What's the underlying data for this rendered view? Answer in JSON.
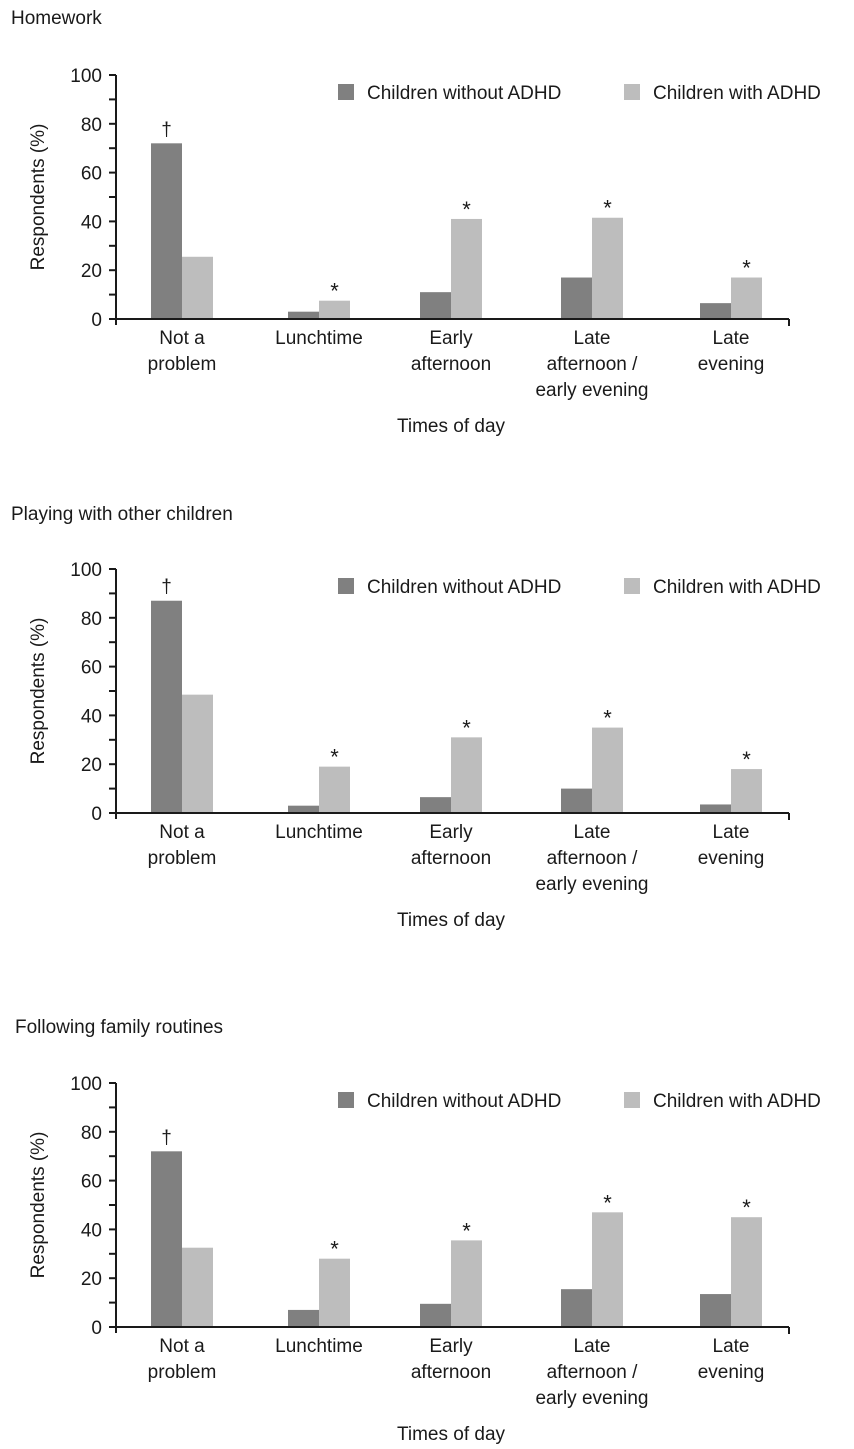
{
  "chart_data": [
    {
      "type": "bar",
      "title": "Homework",
      "categories": [
        [
          "Not a",
          "problem"
        ],
        [
          "Lunchtime"
        ],
        [
          "Early",
          "afternoon"
        ],
        [
          "Late",
          "afternoon /",
          "early evening"
        ],
        [
          "Late",
          "evening"
        ]
      ],
      "series": [
        {
          "name": "Children without ADHD",
          "color": "#808080",
          "values": [
            72,
            3,
            11,
            17,
            6.5
          ]
        },
        {
          "name": "Children with ADHD",
          "color": "#bdbdbd",
          "values": [
            25.5,
            7.5,
            41,
            41.5,
            17
          ]
        }
      ],
      "annotations": [
        {
          "category": 0,
          "series": 0,
          "text": "†"
        },
        {
          "category": 1,
          "series": 1,
          "text": "*"
        },
        {
          "category": 2,
          "series": 1,
          "text": "*"
        },
        {
          "category": 3,
          "series": 1,
          "text": "*"
        },
        {
          "category": 4,
          "series": 1,
          "text": "*"
        }
      ],
      "xlabel": "Times of day",
      "ylabel": "Respondents (%)",
      "ylim": [
        0,
        100
      ],
      "yticks": [
        0,
        20,
        40,
        60,
        80,
        100
      ],
      "legend": "top-right",
      "grid": false
    },
    {
      "type": "bar",
      "title": "Playing with other children",
      "categories": [
        [
          "Not a",
          "problem"
        ],
        [
          "Lunchtime"
        ],
        [
          "Early",
          "afternoon"
        ],
        [
          "Late",
          "afternoon /",
          "early evening"
        ],
        [
          "Late",
          "evening"
        ]
      ],
      "series": [
        {
          "name": "Children without ADHD",
          "color": "#808080",
          "values": [
            87,
            3,
            6.5,
            10,
            3.5
          ]
        },
        {
          "name": "Children with ADHD",
          "color": "#bdbdbd",
          "values": [
            48.5,
            19,
            31,
            35,
            18
          ]
        }
      ],
      "annotations": [
        {
          "category": 0,
          "series": 0,
          "text": "†"
        },
        {
          "category": 1,
          "series": 1,
          "text": "*"
        },
        {
          "category": 2,
          "series": 1,
          "text": "*"
        },
        {
          "category": 3,
          "series": 1,
          "text": "*"
        },
        {
          "category": 4,
          "series": 1,
          "text": "*"
        }
      ],
      "xlabel": "Times of day",
      "ylabel": "Respondents (%)",
      "ylim": [
        0,
        100
      ],
      "yticks": [
        0,
        20,
        40,
        60,
        80,
        100
      ],
      "legend": "top-right",
      "grid": false
    },
    {
      "type": "bar",
      "title": "Following family routines",
      "categories": [
        [
          "Not a",
          "problem"
        ],
        [
          "Lunchtime"
        ],
        [
          "Early",
          "afternoon"
        ],
        [
          "Late",
          "afternoon /",
          "early evening"
        ],
        [
          "Late",
          "evening"
        ]
      ],
      "series": [
        {
          "name": "Children without ADHD",
          "color": "#808080",
          "values": [
            72,
            7,
            9.5,
            15.5,
            13.5
          ]
        },
        {
          "name": "Children with ADHD",
          "color": "#bdbdbd",
          "values": [
            32.5,
            28,
            35.5,
            47,
            45
          ]
        }
      ],
      "annotations": [
        {
          "category": 0,
          "series": 0,
          "text": "†"
        },
        {
          "category": 1,
          "series": 1,
          "text": "*"
        },
        {
          "category": 2,
          "series": 1,
          "text": "*"
        },
        {
          "category": 3,
          "series": 1,
          "text": "*"
        },
        {
          "category": 4,
          "series": 1,
          "text": "*"
        }
      ],
      "xlabel": "Times of day",
      "ylabel": "Respondents (%)",
      "ylim": [
        0,
        100
      ],
      "yticks": [
        0,
        20,
        40,
        60,
        80,
        100
      ],
      "legend": "top-right",
      "grid": false
    }
  ]
}
